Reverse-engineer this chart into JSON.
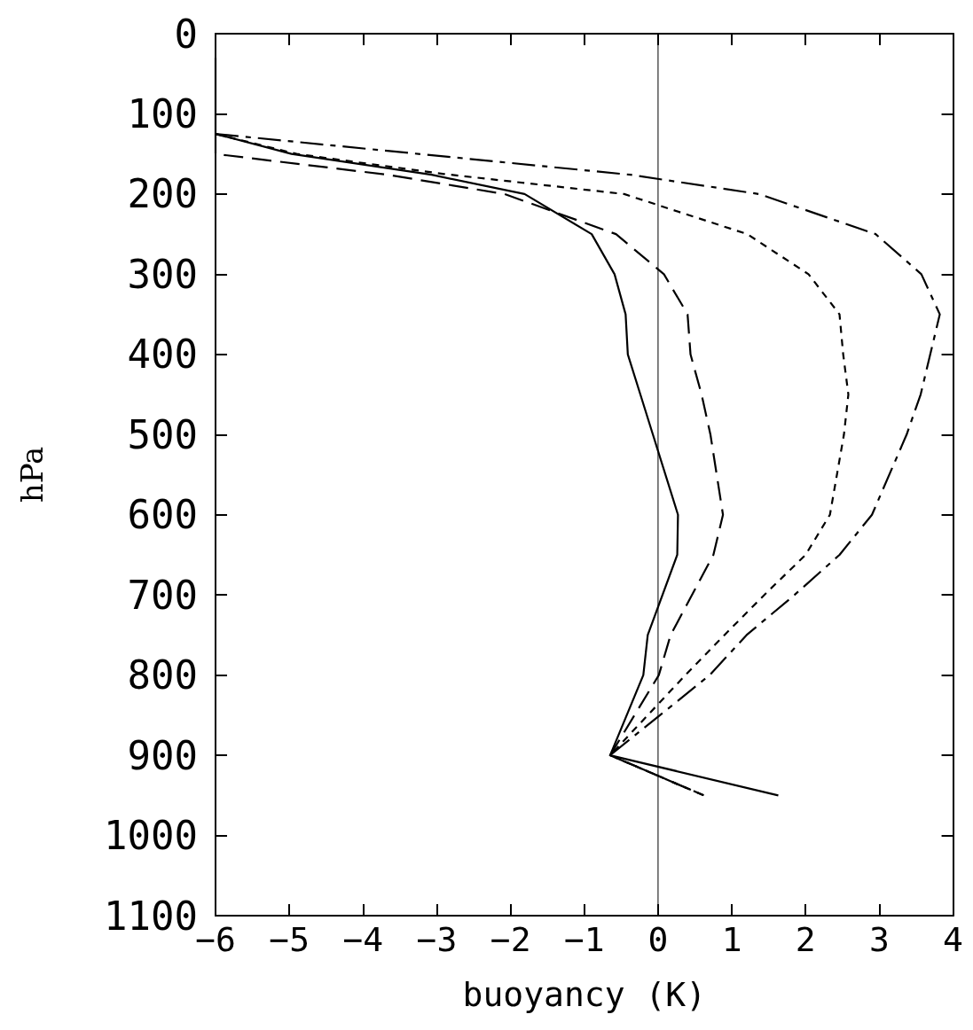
{
  "chart_data": {
    "type": "line",
    "xlabel": "buoyancy (K)",
    "ylabel": "hPa",
    "xlim": [
      -6,
      4
    ],
    "xticks": [
      -6,
      -5,
      -4,
      -3,
      -2,
      -1,
      0,
      1,
      2,
      3,
      4
    ],
    "ylim": [
      1100,
      0
    ],
    "yticks": [
      0,
      100,
      200,
      300,
      400,
      500,
      600,
      700,
      800,
      900,
      1000,
      1100
    ],
    "grid": false,
    "marker": "none",
    "series": [
      {
        "color": "#000000",
        "line_style": "solid",
        "x": [
          -6,
          -6,
          -4.97,
          -3.07,
          -1.81,
          -0.9,
          -0.59,
          -0.44,
          -0.41,
          -0.24,
          -0.07,
          0.27,
          0.26,
          -0.14,
          -0.2,
          -0.65,
          1.63
        ],
        "values": [
          30,
          125,
          150,
          176,
          200,
          250,
          300,
          350,
          400,
          450,
          500,
          600,
          650,
          750,
          800,
          900,
          950
        ]
      },
      {
        "color": "#000000",
        "line_style": "dashed",
        "x": [
          -6,
          -6,
          -3.66,
          -2.08,
          -0.57,
          0.08,
          0.4,
          0.44,
          0.59,
          0.71,
          0.88,
          0.75,
          0.17,
          0.01,
          -0.65,
          0.62
        ],
        "values": [
          125,
          150,
          176,
          200,
          250,
          300,
          350,
          400,
          450,
          500,
          600,
          650,
          750,
          800,
          900,
          950
        ]
      },
      {
        "color": "#000000",
        "line_style": "dotted",
        "x": [
          -6,
          -4.9,
          -2.9,
          -0.46,
          1.21,
          2.04,
          2.46,
          2.51,
          2.58,
          2.52,
          2.33,
          2,
          1.44,
          0.9,
          0.37,
          -0.65,
          0.62
        ],
        "values": [
          125,
          150,
          175,
          200,
          250,
          300,
          350,
          400,
          450,
          500,
          600,
          650,
          700,
          750,
          800,
          900,
          950
        ]
      },
      {
        "color": "#000000",
        "line_style": "dashdot",
        "x": [
          -6,
          -0.37,
          1.37,
          2.95,
          3.57,
          3.82,
          3.69,
          3.56,
          3.37,
          2.9,
          2.46,
          1.85,
          1.2,
          0.7,
          -0.65,
          0.62
        ],
        "values": [
          125,
          176,
          200,
          250,
          300,
          350,
          400,
          450,
          500,
          600,
          650,
          700,
          750,
          800,
          900,
          950
        ]
      }
    ],
    "ref_lines": [
      {
        "axis": "x",
        "value": 0,
        "color": "#000000",
        "line_style": "solid"
      }
    ]
  }
}
